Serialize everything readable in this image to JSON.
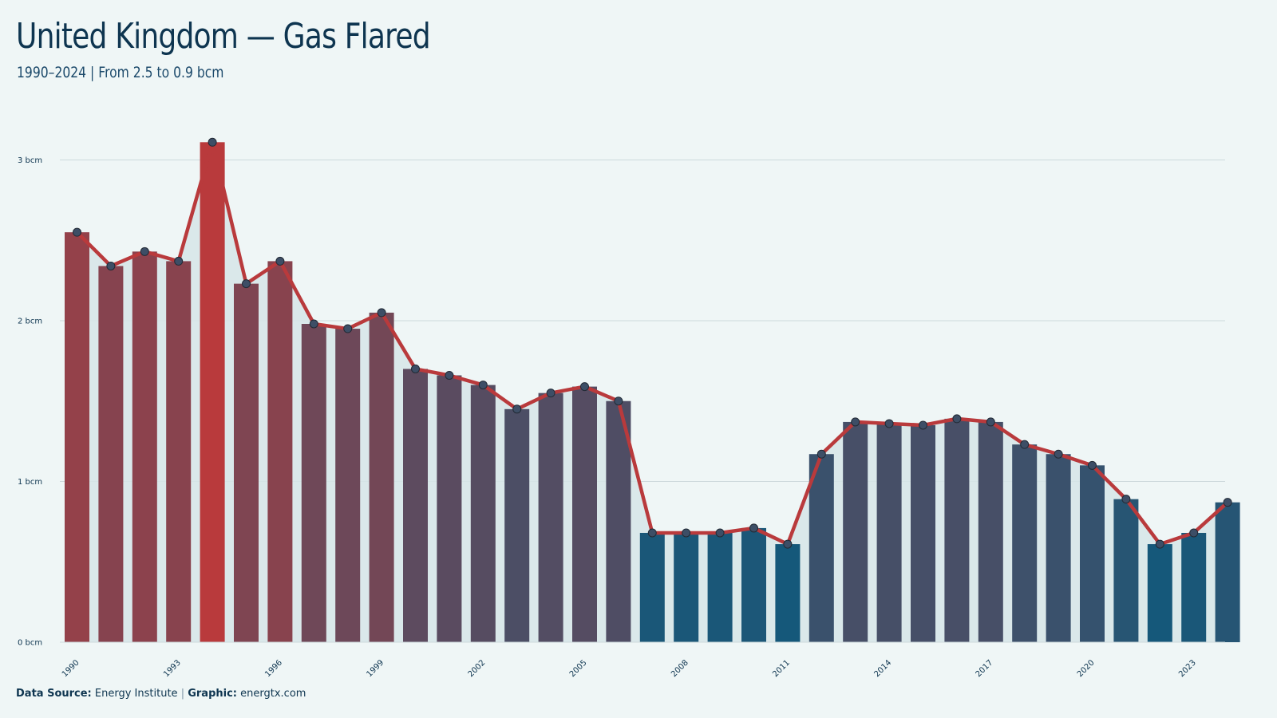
{
  "title": "United Kingdom — Gas Flared",
  "subtitle": "1990–2024 | From 2.5 to 0.9 bcm",
  "footer": {
    "source_label": "Data Source:",
    "source_value": "Energy Institute",
    "separator": "|",
    "graphic_label": "Graphic:",
    "graphic_value": "energtx.com"
  },
  "colors": {
    "background": "#eff6f6",
    "line": "#b93a3c",
    "high": "#b93a3c",
    "low": "#15587a",
    "area": "#d6e5e8",
    "grid": "#cdd9dc"
  },
  "chart_data": {
    "type": "bar",
    "title": "United Kingdom — Gas Flared",
    "subtitle": "1990–2024 | From 2.5 to 0.9 bcm",
    "x": [
      1990,
      1991,
      1992,
      1993,
      1994,
      1995,
      1996,
      1997,
      1998,
      1999,
      2000,
      2001,
      2002,
      2003,
      2004,
      2005,
      2006,
      2007,
      2008,
      2009,
      2010,
      2011,
      2012,
      2013,
      2014,
      2015,
      2016,
      2017,
      2018,
      2019,
      2020,
      2021,
      2022,
      2023,
      2024
    ],
    "values": [
      2.55,
      2.34,
      2.43,
      2.37,
      3.11,
      2.23,
      2.37,
      1.98,
      1.95,
      2.05,
      1.7,
      1.66,
      1.6,
      1.45,
      1.55,
      1.59,
      1.5,
      0.68,
      0.68,
      0.68,
      0.71,
      0.61,
      1.17,
      1.37,
      1.36,
      1.35,
      1.39,
      1.37,
      1.23,
      1.17,
      1.1,
      0.89,
      0.61,
      0.68,
      0.87
    ],
    "x_tick_labels": [
      "1990",
      "1993",
      "1996",
      "1999",
      "2002",
      "2005",
      "2008",
      "2011",
      "2014",
      "2017",
      "2020",
      "2023"
    ],
    "y_tick_labels": [
      "0 bcm",
      "1 bcm",
      "2 bcm",
      "3 bcm"
    ],
    "y_ticks": [
      0,
      1,
      2,
      3
    ],
    "ylim": [
      0,
      3.3
    ],
    "unit": "bcm",
    "grid": true,
    "overlay": "line with markers and shaded area"
  }
}
